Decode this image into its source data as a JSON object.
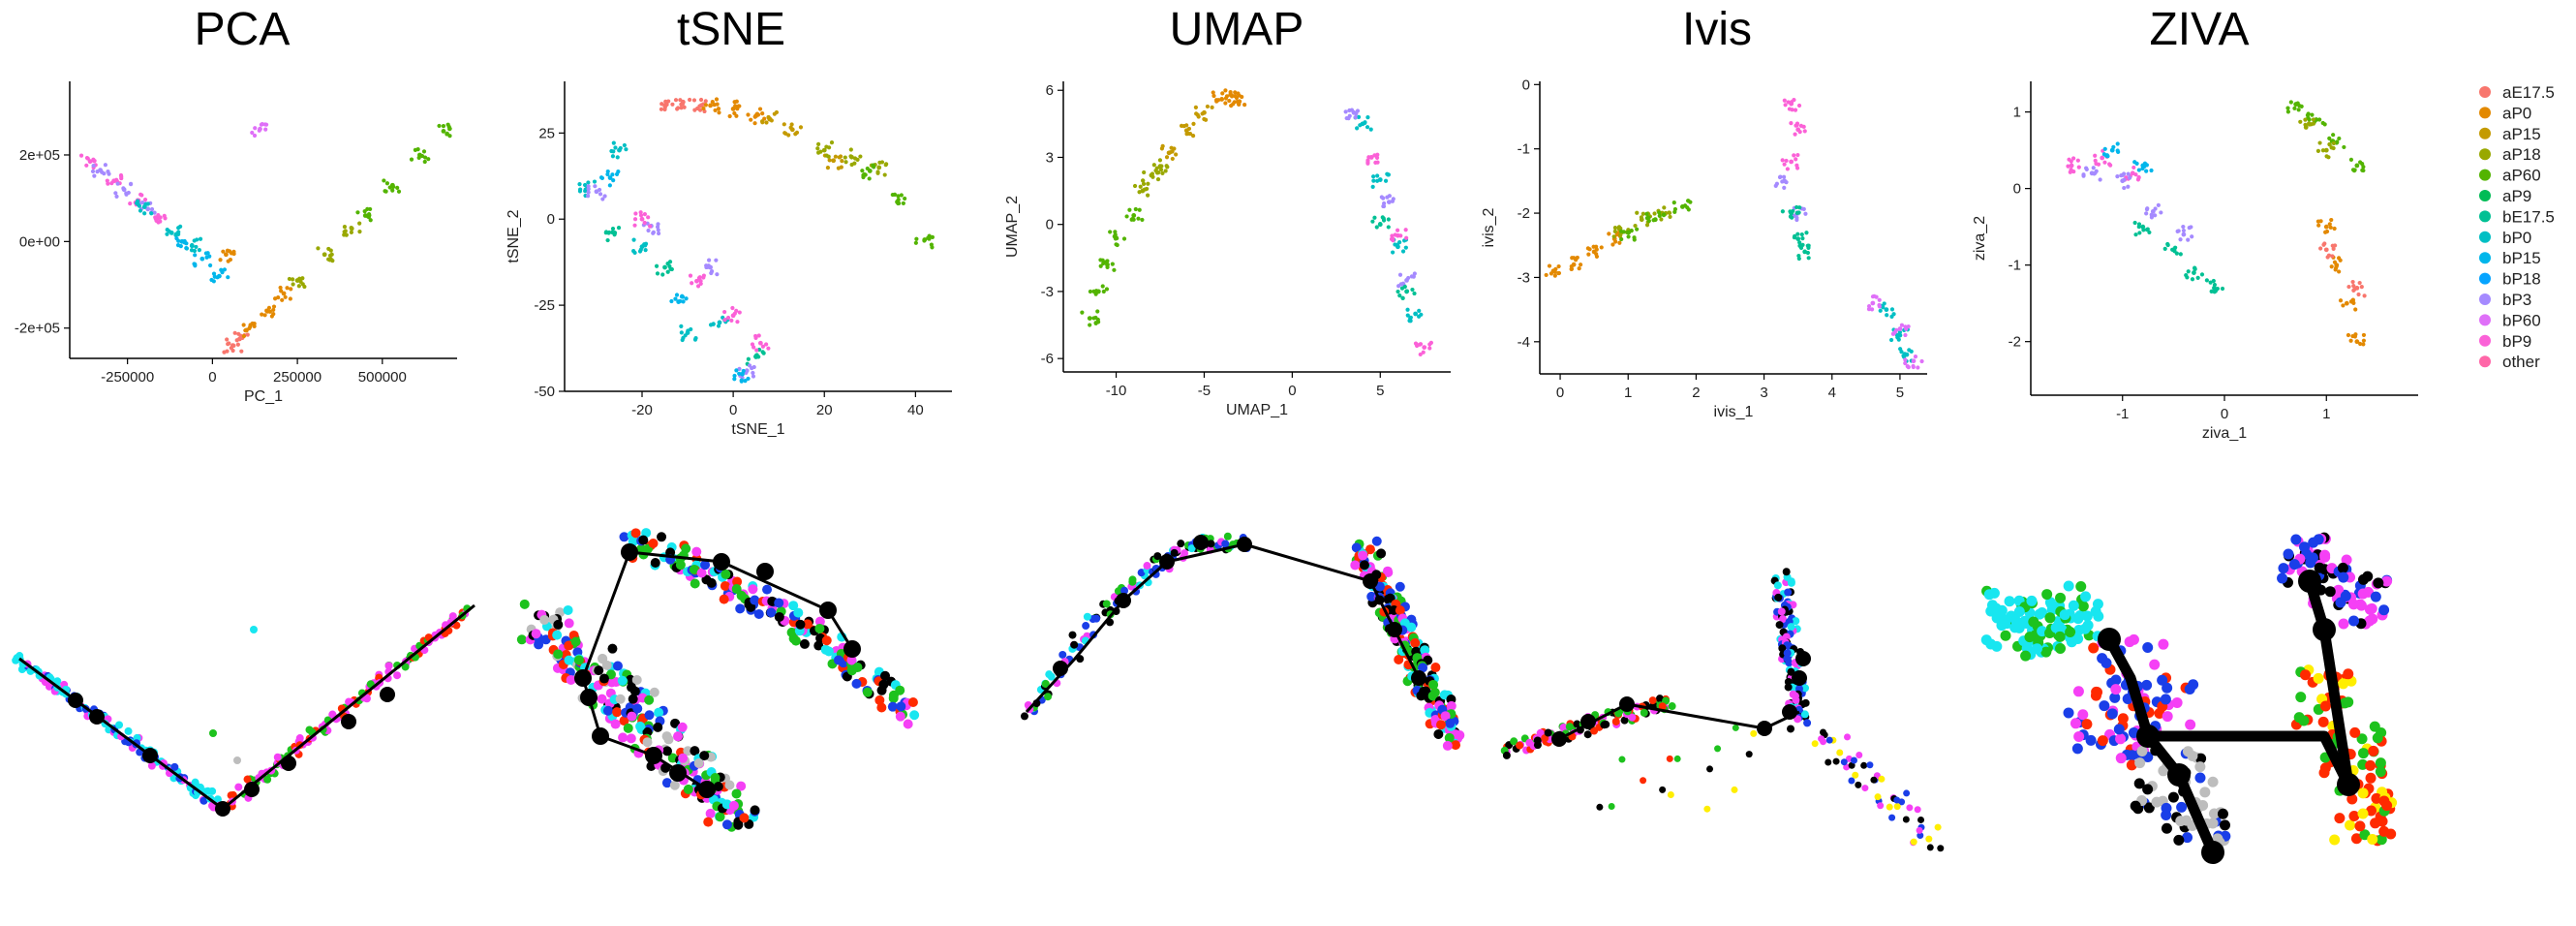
{
  "legend": {
    "entries": [
      {
        "name": "aE17.5",
        "color": "#F8766D"
      },
      {
        "name": "aP0",
        "color": "#E38900"
      },
      {
        "name": "aP15",
        "color": "#C49A00"
      },
      {
        "name": "aP18",
        "color": "#99A800"
      },
      {
        "name": "aP60",
        "color": "#53B400"
      },
      {
        "name": "aP9",
        "color": "#00BC56"
      },
      {
        "name": "bE17.5",
        "color": "#00C094"
      },
      {
        "name": "bP0",
        "color": "#00BFC4"
      },
      {
        "name": "bP15",
        "color": "#00B6EB"
      },
      {
        "name": "bP18",
        "color": "#06A4FF"
      },
      {
        "name": "bP3",
        "color": "#A58AFF"
      },
      {
        "name": "bP60",
        "color": "#DF70F8"
      },
      {
        "name": "bP9",
        "color": "#FB61D7"
      },
      {
        "name": "other",
        "color": "#FF66A8"
      }
    ]
  },
  "chart_data": [
    {
      "type": "scatter",
      "title": "PCA",
      "xlabel": "PC_1",
      "ylabel": "PC_2",
      "xlim": [
        -420000,
        720000
      ],
      "ylim": [
        -270000,
        370000
      ],
      "x_ticks": [
        {
          "v": -250000,
          "label": "-250000"
        },
        {
          "v": 0,
          "label": "0"
        },
        {
          "v": 250000,
          "label": "250000"
        },
        {
          "v": 500000,
          "label": "500000"
        }
      ],
      "y_ticks": [
        {
          "v": -200000,
          "label": "-2e+05"
        },
        {
          "v": 0,
          "label": "0e+00"
        },
        {
          "v": 200000,
          "label": "2e+05"
        }
      ],
      "series": [
        {
          "group": "bP9",
          "x": [
            -360000,
            -290000,
            -220000,
            -160000
          ],
          "y": [
            185000,
            140000,
            95000,
            55000
          ]
        },
        {
          "group": "bP3",
          "x": [
            -330000,
            -260000,
            -190000
          ],
          "y": [
            165000,
            120000,
            75000
          ]
        },
        {
          "group": "bP0",
          "x": [
            -200000,
            -120000,
            -60000
          ],
          "y": [
            80000,
            20000,
            -10000
          ]
        },
        {
          "group": "bP15",
          "x": [
            -90000,
            -30000,
            20000
          ],
          "y": [
            0,
            -40000,
            -80000
          ]
        },
        {
          "group": "aE17.5",
          "x": [
            60000,
            80000
          ],
          "y": [
            -240000,
            -225000
          ]
        },
        {
          "group": "aP0",
          "x": [
            100000,
            160000,
            210000,
            40000
          ],
          "y": [
            -205000,
            -160000,
            -120000,
            -30000
          ]
        },
        {
          "group": "aP18",
          "x": [
            250000,
            330000,
            410000
          ],
          "y": [
            -90000,
            -30000,
            30000
          ]
        },
        {
          "group": "aP60",
          "x": [
            450000,
            530000,
            610000,
            680000
          ],
          "y": [
            60000,
            130000,
            200000,
            255000
          ]
        },
        {
          "group": "bP60",
          "x": [
            140000
          ],
          "y": [
            260000
          ]
        }
      ]
    },
    {
      "type": "scatter",
      "title": "tSNE",
      "xlabel": "tSNE_1",
      "ylabel": "tSNE_2",
      "xlim": [
        -37,
        48
      ],
      "ylim": [
        -50,
        40
      ],
      "x_ticks": [
        {
          "v": -20,
          "label": "-20"
        },
        {
          "v": 0,
          "label": "0"
        },
        {
          "v": 20,
          "label": "20"
        },
        {
          "v": 40,
          "label": "40"
        }
      ],
      "y_ticks": [
        {
          "v": -50,
          "label": "-50"
        },
        {
          "v": -25,
          "label": "-25"
        },
        {
          "v": 0,
          "label": "0"
        },
        {
          "v": 25,
          "label": "25"
        }
      ],
      "series": [
        {
          "group": "aE17.5",
          "x": [
            -15,
            -11,
            -7
          ],
          "y": [
            33,
            34,
            33
          ]
        },
        {
          "group": "aP0",
          "x": [
            -5,
            0,
            5
          ],
          "y": [
            33,
            32,
            30
          ]
        },
        {
          "group": "aP15",
          "x": [
            8,
            13,
            22
          ],
          "y": [
            29,
            26,
            17
          ]
        },
        {
          "group": "aP18",
          "x": [
            20,
            26,
            32
          ],
          "y": [
            20,
            18,
            15
          ]
        },
        {
          "group": "aP60",
          "x": [
            30,
            36,
            42
          ],
          "y": [
            14,
            5,
            -6
          ]
        },
        {
          "group": "bP0",
          "x": [
            -32,
            -25,
            -20,
            -10,
            -3
          ],
          "y": [
            9,
            20,
            -8,
            -33,
            -30
          ]
        },
        {
          "group": "bE17.5",
          "x": [
            -26,
            -15,
            5
          ],
          "y": [
            -4,
            -14,
            -40
          ]
        },
        {
          "group": "bP3",
          "x": [
            -30,
            -18,
            -5,
            3
          ],
          "y": [
            8,
            -2,
            -14,
            -44
          ]
        },
        {
          "group": "bP9",
          "x": [
            -20,
            -8,
            0,
            6
          ],
          "y": [
            0,
            -18,
            -28,
            -36
          ]
        },
        {
          "group": "bP15",
          "x": [
            -27,
            -12,
            2
          ],
          "y": [
            12,
            -24,
            -45
          ]
        }
      ]
    },
    {
      "type": "scatter",
      "title": "UMAP",
      "xlabel": "UMAP_1",
      "ylabel": "UMAP_2",
      "xlim": [
        -13,
        9
      ],
      "ylim": [
        -6.6,
        6.4
      ],
      "x_ticks": [
        {
          "v": -10,
          "label": "-10"
        },
        {
          "v": -5,
          "label": "-5"
        },
        {
          "v": 0,
          "label": "0"
        },
        {
          "v": 5,
          "label": "5"
        }
      ],
      "y_ticks": [
        {
          "v": -6,
          "label": "-6"
        },
        {
          "v": -3,
          "label": "-3"
        },
        {
          "v": 0,
          "label": "0"
        },
        {
          "v": 3,
          "label": "3"
        },
        {
          "v": 6,
          "label": "6"
        }
      ],
      "series": [
        {
          "group": "aP60",
          "x": [
            -11.5,
            -11,
            -10.5,
            -10,
            -9
          ],
          "y": [
            -4.2,
            -3,
            -1.8,
            -0.6,
            0.4
          ]
        },
        {
          "group": "aP18",
          "x": [
            -8.5,
            -8,
            -7.5
          ],
          "y": [
            1.5,
            2.2,
            2.6
          ]
        },
        {
          "group": "aP15",
          "x": [
            -7,
            -6,
            -5
          ],
          "y": [
            3.2,
            4.2,
            5
          ]
        },
        {
          "group": "aP0",
          "x": [
            -4,
            -3.5,
            -3
          ],
          "y": [
            5.6,
            5.8,
            5.5
          ]
        },
        {
          "group": "bP0",
          "x": [
            4,
            5,
            6,
            7
          ],
          "y": [
            4.5,
            2,
            -1,
            -4
          ]
        },
        {
          "group": "bP3",
          "x": [
            3.5,
            5.5,
            6.5
          ],
          "y": [
            5,
            1,
            -2.5
          ]
        },
        {
          "group": "bP9",
          "x": [
            4.5,
            6,
            7.5
          ],
          "y": [
            3,
            -0.5,
            -5.5
          ]
        },
        {
          "group": "bE17.5",
          "x": [
            5,
            6.5
          ],
          "y": [
            0,
            -3
          ]
        }
      ]
    },
    {
      "type": "scatter",
      "title": "Ivis",
      "xlabel": "ivis_1",
      "ylabel": "ivis_2",
      "xlim": [
        -0.3,
        5.4
      ],
      "ylim": [
        -4.5,
        0.05
      ],
      "x_ticks": [
        {
          "v": 0,
          "label": "0"
        },
        {
          "v": 1,
          "label": "1"
        },
        {
          "v": 2,
          "label": "2"
        },
        {
          "v": 3,
          "label": "3"
        },
        {
          "v": 4,
          "label": "4"
        },
        {
          "v": 5,
          "label": "5"
        }
      ],
      "y_ticks": [
        {
          "v": -4,
          "label": "-4"
        },
        {
          "v": -3,
          "label": "-3"
        },
        {
          "v": -2,
          "label": "-2"
        },
        {
          "v": -1,
          "label": "-1"
        },
        {
          "v": 0,
          "label": "0"
        }
      ],
      "series": [
        {
          "group": "aP0",
          "x": [
            -0.1,
            0.2,
            0.5,
            0.8
          ],
          "y": [
            -2.9,
            -2.8,
            -2.6,
            -2.4
          ]
        },
        {
          "group": "aP18",
          "x": [
            0.9,
            1.2,
            1.5
          ],
          "y": [
            -2.3,
            -2.1,
            -2
          ]
        },
        {
          "group": "aP60",
          "x": [
            1,
            1.4,
            1.8
          ],
          "y": [
            -2.3,
            -2.1,
            -1.9
          ]
        },
        {
          "group": "bP9",
          "x": [
            3.4,
            3.5,
            3.4
          ],
          "y": [
            -0.3,
            -0.7,
            -1.2
          ]
        },
        {
          "group": "bP3",
          "x": [
            3.3,
            3.5
          ],
          "y": [
            -1.5,
            -2
          ]
        },
        {
          "group": "bE17.5",
          "x": [
            3.4,
            3.5,
            3.6
          ],
          "y": [
            -2,
            -2.4,
            -2.6
          ]
        },
        {
          "group": "bP0",
          "x": [
            4.8,
            5,
            5.1
          ],
          "y": [
            -3.5,
            -3.9,
            -4.2
          ]
        },
        {
          "group": "bP60",
          "x": [
            4.6,
            5,
            5.2
          ],
          "y": [
            -3.4,
            -3.8,
            -4.3
          ]
        }
      ]
    },
    {
      "type": "scatter",
      "title": "ZIVA",
      "xlabel": "ziva_1",
      "ylabel": "ziva_2",
      "xlim": [
        -1.9,
        1.9
      ],
      "ylim": [
        -2.7,
        1.4
      ],
      "x_ticks": [
        {
          "v": -1,
          "label": "-1"
        },
        {
          "v": 0,
          "label": "0"
        },
        {
          "v": 1,
          "label": "1"
        }
      ],
      "y_ticks": [
        {
          "v": -2,
          "label": "-2"
        },
        {
          "v": -1,
          "label": "-1"
        },
        {
          "v": 0,
          "label": "0"
        },
        {
          "v": 1,
          "label": "1"
        }
      ],
      "series": [
        {
          "group": "bP9",
          "x": [
            -1.5,
            -1.2,
            -0.9
          ],
          "y": [
            0.3,
            0.4,
            0.2
          ]
        },
        {
          "group": "bP3",
          "x": [
            -1.3,
            -1,
            -0.7,
            -0.4
          ],
          "y": [
            0.2,
            0.1,
            -0.3,
            -0.6
          ]
        },
        {
          "group": "bP15",
          "x": [
            -1.1,
            -0.8
          ],
          "y": [
            0.5,
            0.3
          ]
        },
        {
          "group": "bE17.5",
          "x": [
            -0.8,
            -0.5,
            -0.3,
            -0.1
          ],
          "y": [
            -0.5,
            -0.8,
            -1.1,
            -1.3
          ]
        },
        {
          "group": "aP60",
          "x": [
            0.7,
            0.9,
            1.1,
            1.3
          ],
          "y": [
            1.1,
            0.9,
            0.6,
            0.3
          ]
        },
        {
          "group": "aP18",
          "x": [
            0.8,
            1
          ],
          "y": [
            0.8,
            0.5
          ]
        },
        {
          "group": "aP0",
          "x": [
            1,
            1.1,
            1.2,
            1.3
          ],
          "y": [
            -0.5,
            -1,
            -1.5,
            -2
          ]
        },
        {
          "group": "aE17.5",
          "x": [
            1,
            1.3
          ],
          "y": [
            -0.8,
            -1.3
          ]
        }
      ]
    }
  ],
  "titles": [
    "PCA",
    "tSNE",
    "UMAP",
    "Ivis",
    "ZIVA"
  ],
  "trajectory_panels": {
    "colors": {
      "red": "#FF2A00",
      "green": "#1DC21D",
      "blue": "#1A3EE8",
      "magenta": "#F540F5",
      "cyan": "#18E6F0",
      "grey": "#BDBDBD",
      "yellow": "#FFEE00",
      "black": "#000000",
      "node": "#000000"
    }
  }
}
